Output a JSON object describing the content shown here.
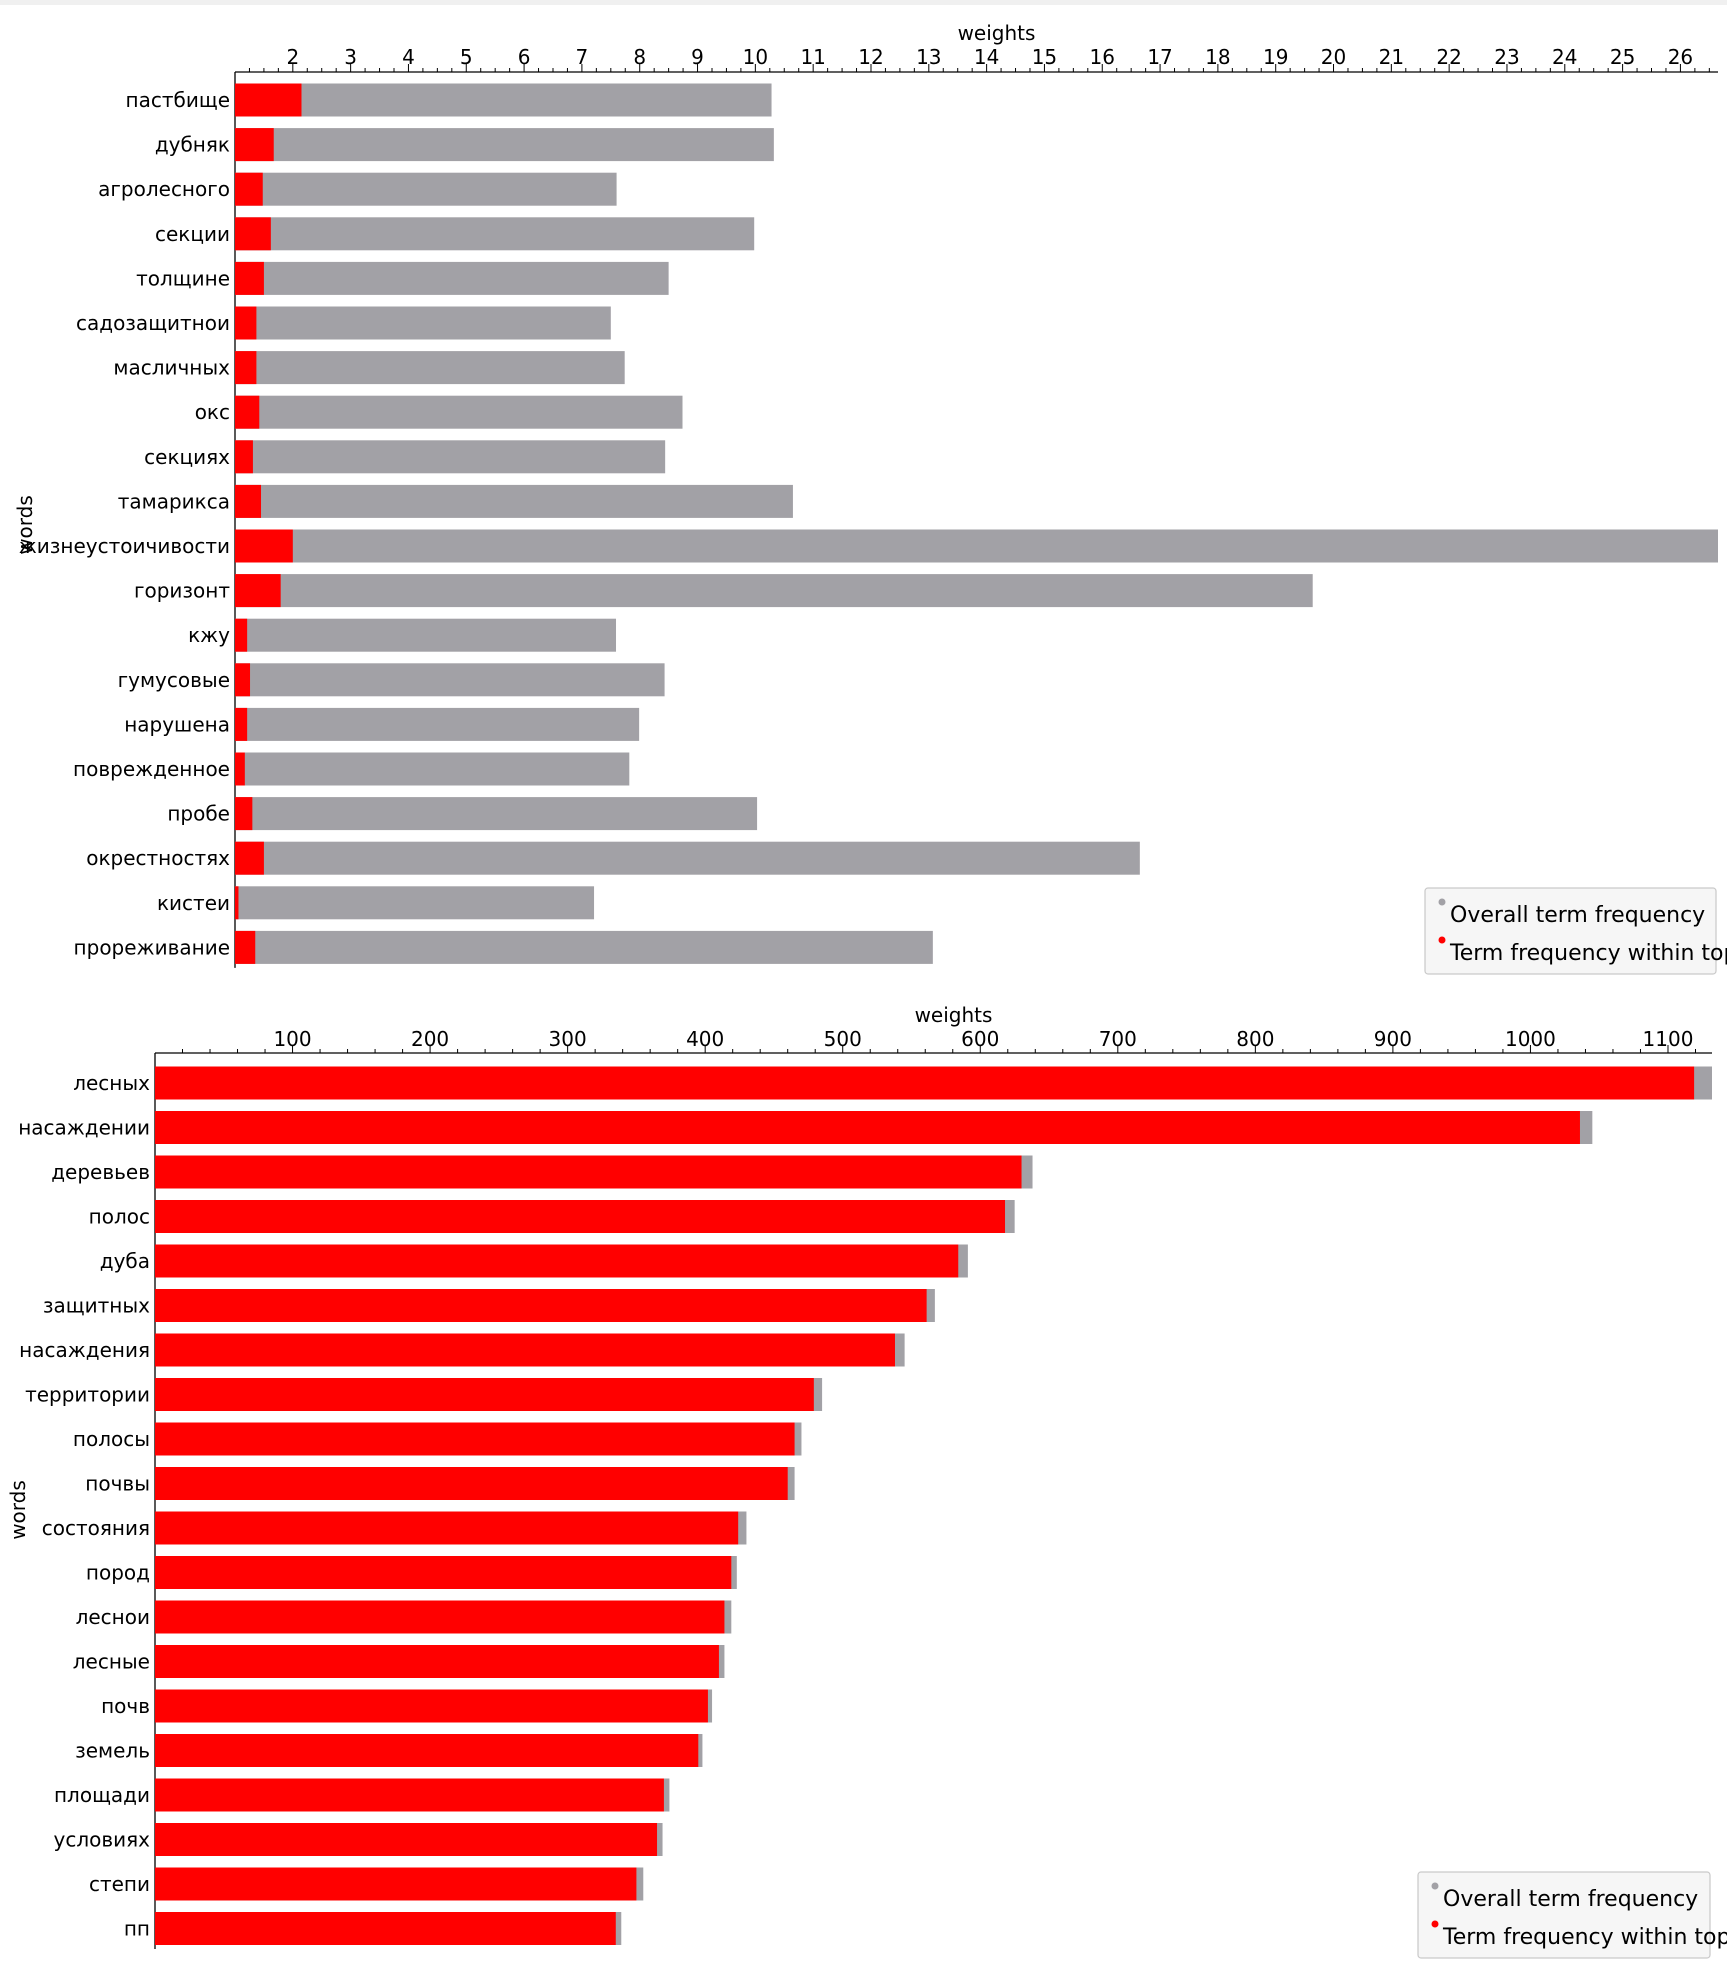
{
  "legend": {
    "overall": "Overall term frequency",
    "within": "Term frequency within topic",
    "overall_color": "#a2a1a6",
    "within_color": "#ff0000"
  },
  "chart_data": [
    {
      "type": "bar",
      "orientation": "horizontal",
      "xlabel": "weights",
      "ylabel": "words",
      "xlim": [
        1,
        26.65
      ],
      "xticks": [
        2,
        3,
        4,
        5,
        6,
        7,
        8,
        9,
        10,
        11,
        12,
        13,
        14,
        15,
        16,
        17,
        18,
        19,
        20,
        21,
        22,
        23,
        24,
        25,
        26
      ],
      "legend_position": "bottom-right",
      "categories": [
        "пастбище",
        "дубняк",
        "агролесного",
        "секции",
        "толщине",
        "садозащитнои",
        "масличных",
        "окс",
        "секциях",
        "тамарикса",
        "жизнеустоичивости",
        "горизонт",
        "кжу",
        "гумусовые",
        "нарушена",
        "поврежденное",
        "пробе",
        "окрестностях",
        "кистеи",
        "прореживание"
      ],
      "series": [
        {
          "name": "Overall term frequency",
          "values": [
            10.28,
            10.32,
            7.6,
            9.98,
            8.5,
            7.5,
            7.74,
            8.74,
            8.44,
            10.65,
            26.65,
            19.64,
            7.59,
            8.43,
            7.99,
            7.82,
            10.03,
            16.65,
            7.21,
            13.07
          ]
        },
        {
          "name": "Term frequency within topic",
          "values": [
            2.15,
            1.67,
            1.48,
            1.62,
            1.5,
            1.37,
            1.37,
            1.42,
            1.31,
            1.45,
            2.0,
            1.79,
            1.21,
            1.26,
            1.21,
            1.17,
            1.3,
            1.5,
            1.06,
            1.35
          ]
        }
      ]
    },
    {
      "type": "bar",
      "orientation": "horizontal",
      "xlabel": "weights",
      "ylabel": "words",
      "xlim": [
        0,
        1132
      ],
      "xticks": [
        100,
        200,
        300,
        400,
        500,
        600,
        700,
        800,
        900,
        1000,
        1100
      ],
      "legend_position": "bottom-right",
      "categories": [
        "лесных",
        "насаждении",
        "деревьев",
        "полос",
        "дуба",
        "защитных",
        "насаждения",
        "территории",
        "полосы",
        "почвы",
        "состояния",
        "пород",
        "леснои",
        "лесные",
        "почв",
        "земель",
        "площади",
        "условиях",
        "степи",
        "пп"
      ],
      "series": [
        {
          "name": "Overall term frequency",
          "values": [
            1132,
            1045,
            638,
            625,
            591,
            567,
            545,
            485,
            470,
            465,
            430,
            423,
            419,
            414,
            405,
            398,
            374,
            369,
            355,
            339
          ]
        },
        {
          "name": "Term frequency within topic",
          "values": [
            1119,
            1036,
            630,
            618,
            584,
            561,
            538,
            479,
            465,
            460,
            424,
            419,
            414,
            410,
            402,
            395,
            370,
            365,
            350,
            335
          ]
        }
      ]
    }
  ]
}
